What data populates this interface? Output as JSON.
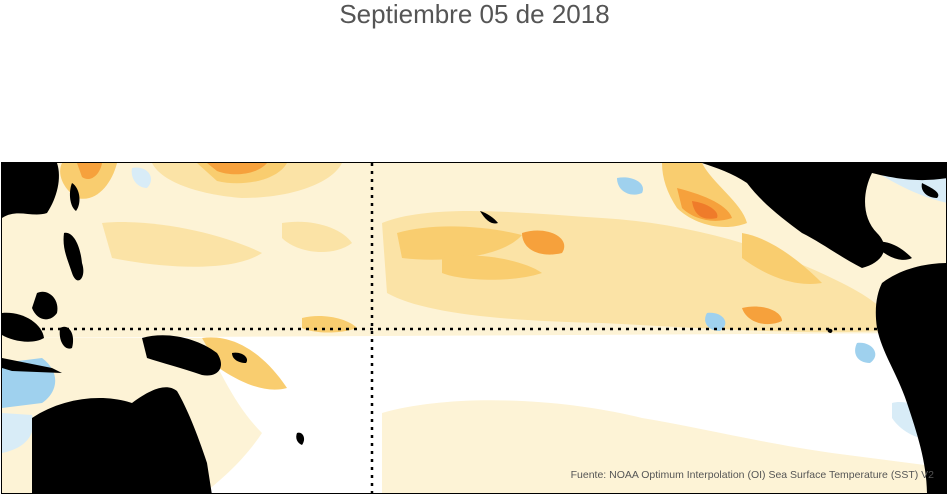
{
  "title": "Septiembre 05 de 2018",
  "source": "Fuente: NOAA Optimum Interpolation (OI) Sea Surface Temperature (SST) V2",
  "colors": {
    "land": "#000000",
    "anomaly_light_warm": "#fdf3d6",
    "anomaly_warm": "#fbe3a6",
    "anomaly_warmer": "#f9cd6f",
    "anomaly_hot": "#f6a13c",
    "anomaly_hotter": "#ef7b2a",
    "anomaly_cool": "#d8ecf7",
    "anomaly_cooler": "#9fd1ee",
    "guide_lines": "#000000"
  }
}
